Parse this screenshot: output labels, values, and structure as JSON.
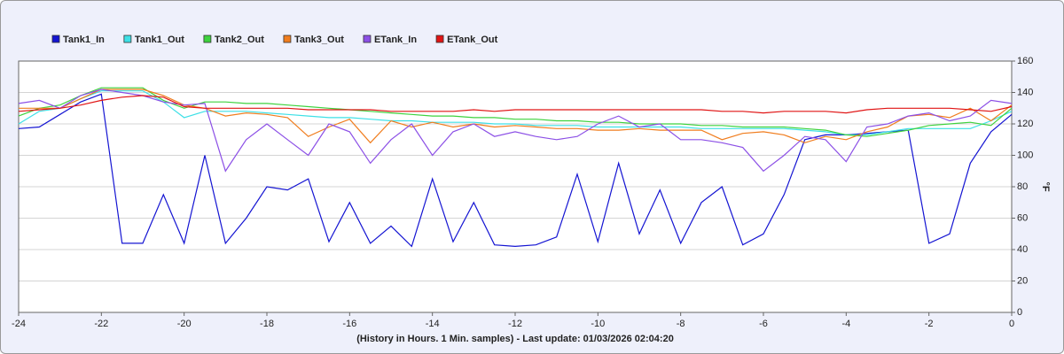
{
  "chart_data": {
    "type": "line",
    "x_label": "(History in Hours. 1 Min. samples) - Last update: 01/03/2026 02:04:20",
    "y_label": "°F",
    "x": [
      -24,
      -23.5,
      -23,
      -22.5,
      -22,
      -21.5,
      -21,
      -20.5,
      -20,
      -19.5,
      -19,
      -18.5,
      -18,
      -17.5,
      -17,
      -16.5,
      -16,
      -15.5,
      -15,
      -14.5,
      -14,
      -13.5,
      -13,
      -12.5,
      -12,
      -11.5,
      -11,
      -10.5,
      -10,
      -9.5,
      -9,
      -8.5,
      -8,
      -7.5,
      -7,
      -6.5,
      -6,
      -5.5,
      -5,
      -4.5,
      -4,
      -3.5,
      -3,
      -2.5,
      -2,
      -1.5,
      -1,
      -0.5,
      0
    ],
    "xlim": [
      -24,
      0
    ],
    "xticks": [
      -24,
      -22,
      -20,
      -18,
      -16,
      -14,
      -12,
      -10,
      -8,
      -6,
      -4,
      -2,
      0
    ],
    "ylim": [
      0,
      160
    ],
    "yticks": [
      0,
      20,
      40,
      60,
      80,
      100,
      120,
      140,
      160
    ],
    "grid": true,
    "series": [
      {
        "name": "Tank1_In",
        "color": "#1414d2",
        "values": [
          117,
          118,
          126,
          134,
          139,
          44,
          44,
          75,
          44,
          100,
          44,
          60,
          80,
          78,
          85,
          45,
          70,
          44,
          55,
          42,
          85,
          45,
          70,
          43,
          42,
          43,
          48,
          88,
          45,
          95,
          50,
          78,
          44,
          70,
          80,
          43,
          50,
          75,
          110,
          113,
          113,
          114,
          115,
          116,
          44,
          50,
          95,
          115,
          126
        ]
      },
      {
        "name": "Tank1_Out",
        "color": "#3ee0e6",
        "values": [
          120,
          128,
          130,
          136,
          141,
          141,
          141,
          134,
          124,
          128,
          128,
          128,
          127,
          126,
          125,
          124,
          124,
          123,
          122,
          122,
          121,
          121,
          121,
          120,
          120,
          119,
          119,
          119,
          118,
          118,
          118,
          118,
          118,
          117,
          117,
          117,
          117,
          117,
          116,
          115,
          113,
          113,
          115,
          117,
          117,
          117,
          117,
          122,
          128
        ]
      },
      {
        "name": "Tank2_Out",
        "color": "#3ed23e",
        "values": [
          125,
          130,
          132,
          138,
          143,
          143,
          143,
          135,
          130,
          134,
          134,
          133,
          133,
          132,
          131,
          130,
          129,
          128,
          127,
          126,
          125,
          125,
          124,
          124,
          123,
          123,
          122,
          122,
          121,
          121,
          120,
          120,
          120,
          119,
          119,
          118,
          118,
          118,
          117,
          116,
          113,
          112,
          114,
          116,
          119,
          120,
          121,
          119,
          130
        ]
      },
      {
        "name": "Tank3_Out",
        "color": "#f07d1e",
        "values": [
          130,
          130,
          130,
          136,
          142,
          142,
          142,
          138,
          132,
          130,
          125,
          127,
          126,
          124,
          112,
          118,
          123,
          108,
          122,
          118,
          121,
          118,
          120,
          118,
          119,
          118,
          117,
          117,
          116,
          116,
          117,
          116,
          116,
          116,
          110,
          114,
          115,
          113,
          108,
          112,
          110,
          115,
          118,
          125,
          126,
          124,
          130,
          122,
          132
        ]
      },
      {
        "name": "ETank_In",
        "color": "#8c50e6",
        "values": [
          133,
          135,
          130,
          138,
          142,
          140,
          138,
          134,
          132,
          133,
          90,
          110,
          120,
          110,
          100,
          120,
          115,
          95,
          110,
          120,
          100,
          115,
          120,
          112,
          115,
          112,
          110,
          112,
          120,
          125,
          118,
          120,
          110,
          110,
          108,
          105,
          90,
          100,
          112,
          110,
          96,
          118,
          120,
          125,
          127,
          122,
          125,
          135,
          133
        ]
      },
      {
        "name": "ETank_Out",
        "color": "#e01414",
        "values": [
          128,
          129,
          130,
          132,
          135,
          137,
          138,
          137,
          131,
          130,
          130,
          130,
          130,
          130,
          129,
          129,
          129,
          129,
          128,
          128,
          128,
          128,
          129,
          128,
          129,
          129,
          129,
          129,
          129,
          129,
          129,
          129,
          129,
          129,
          128,
          128,
          127,
          128,
          128,
          128,
          127,
          129,
          130,
          130,
          130,
          130,
          129,
          128,
          131
        ]
      }
    ]
  }
}
